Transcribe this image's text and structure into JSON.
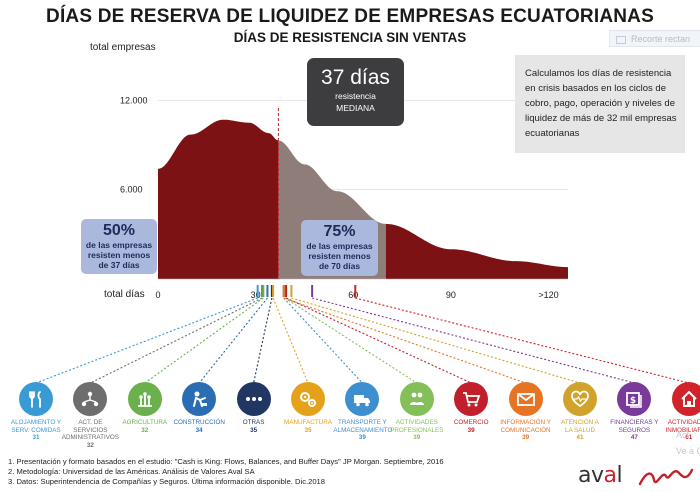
{
  "title": "DÍAS DE RESERVA DE LIQUIDEZ DE EMPRESAS ECUATORIANAS",
  "subtitle": "DÍAS DE RESISTENCIA SIN VENTAS",
  "ghost_button": "Recorte rectan",
  "chart_data": {
    "type": "area",
    "ylabel": "total empresas",
    "xlabel": "total días",
    "yticks": [
      "12.000",
      "6.000"
    ],
    "ytick_values": [
      12000,
      6000
    ],
    "ylim": [
      0,
      13500
    ],
    "xticks": [
      {
        "value": 0,
        "label": "0"
      },
      {
        "value": 30,
        "label": "30"
      },
      {
        "value": 60,
        "label": "60"
      },
      {
        "value": 90,
        "label": "90"
      },
      {
        "value": 120,
        "label": ">120"
      }
    ],
    "xlim": [
      0,
      126
    ],
    "median_days": 37,
    "p75_days": 70,
    "curve": {
      "x": [
        0,
        10,
        20,
        28,
        34,
        37,
        45,
        55,
        70,
        90,
        110,
        126
      ],
      "y": [
        7400,
        9700,
        10700,
        10500,
        9800,
        9300,
        7700,
        5900,
        3700,
        2000,
        1200,
        800
      ]
    },
    "colors": {
      "main": "#7c1213",
      "mid": "#8f7d79",
      "light": "#c0b3b0",
      "grid": "#d9d9d9"
    },
    "median_box": {
      "big": "37 días",
      "line1": "resistencia",
      "line2": "MEDIANA"
    },
    "pct50": {
      "big": "50%",
      "line1": "de las empresas",
      "line2": "resisten menos",
      "line3": "de 37 días"
    },
    "pct75": {
      "big": "75%",
      "line1": "de las empresas",
      "line2": "resisten menos",
      "line3": "de 70 días"
    }
  },
  "info_text": "Calculamos los días de resistencia en crisis basados en los ciclos de cobro, pago, operación y niveles de liquidez de más de 32 mil empresas ecuatorianas",
  "sectors": [
    {
      "lbl1": "ALOJAMIENTO Y",
      "lbl2": "SERV. COMIDAS",
      "days": "31",
      "value": 31,
      "color": "#3a9ad3",
      "icon": "fork-knife-icon"
    },
    {
      "lbl1": "ACT. DE SERVICIOS",
      "lbl2": "ADMINISTRATIVOS",
      "days": "32",
      "value": 32,
      "color": "#6e6e6e",
      "icon": "network-icon"
    },
    {
      "lbl1": "AGRICULTURA",
      "lbl2": "",
      "days": "32",
      "value": 32,
      "color": "#6ab04c",
      "icon": "plant-icon"
    },
    {
      "lbl1": "CONSTRUCCIÓN",
      "lbl2": "",
      "days": "34",
      "value": 34,
      "color": "#2a6db3",
      "icon": "worker-icon"
    },
    {
      "lbl1": "OTRAS",
      "lbl2": "",
      "days": "35",
      "value": 35,
      "color": "#1f3762",
      "icon": "dots-icon"
    },
    {
      "lbl1": "MANUFACTURA",
      "lbl2": "",
      "days": "35",
      "value": 35,
      "color": "#e6a11a",
      "icon": "gears-icon"
    },
    {
      "lbl1": "TRANSPORTE Y",
      "lbl2": "ALMACENAMIENTO",
      "days": "39",
      "value": 39,
      "color": "#3d8fd0",
      "icon": "truck-icon"
    },
    {
      "lbl1": "ACTIVIDADES",
      "lbl2": "PROFESIONALES",
      "days": "39",
      "value": 39,
      "color": "#85bf5a",
      "icon": "people-icon"
    },
    {
      "lbl1": "COMERCIO",
      "lbl2": "",
      "days": "39",
      "value": 39,
      "color": "#c21f2c",
      "icon": "cart-icon"
    },
    {
      "lbl1": "INFORMACIÓN Y",
      "lbl2": "COMUNICACIÓN",
      "days": "39",
      "value": 39,
      "color": "#e57525",
      "icon": "envelope-icon"
    },
    {
      "lbl1": "ATENCIÓN A",
      "lbl2": "LA SALUD",
      "days": "41",
      "value": 41,
      "color": "#d1a22c",
      "icon": "heart-icon"
    },
    {
      "lbl1": "FINANCIERAS Y",
      "lbl2": "SEGUROS",
      "days": "47",
      "value": 47,
      "color": "#7a3a99",
      "icon": "money-icon"
    },
    {
      "lbl1": "ACTIVIDADES",
      "lbl2": "INMOBILIARIAS",
      "days": "61",
      "value": 61,
      "color": "#d2232a",
      "icon": "house-icon"
    }
  ],
  "notes": [
    "1. Presentación y formato basados en el estudio: \"Cash is King: Flows, Balances, and Buffer Days\" JP Morgan. Septiembre, 2016",
    "2. Metodología: Universidad de las Américas. Análisis de Valores Aval SA",
    "3. Datos: Superintendencia de Compañías y Seguros. Última información disponible. Dic.2018"
  ],
  "logo": {
    "part1": "av",
    "accent": "a",
    "part2": "l"
  },
  "watermark": {
    "line1": "Act",
    "line2": "Ve a Con"
  }
}
